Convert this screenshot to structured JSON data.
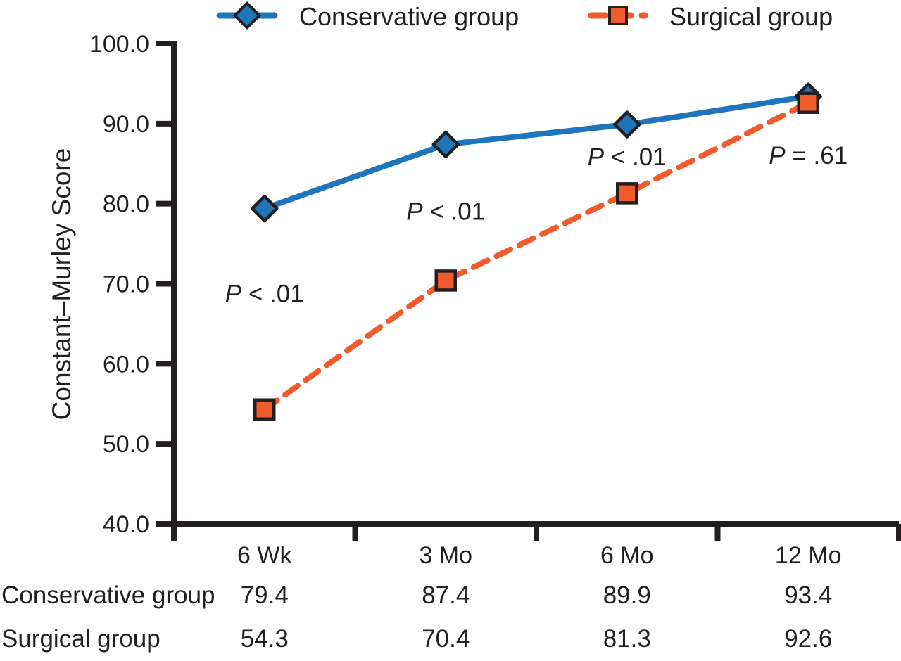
{
  "figure": {
    "background": "#ffffff"
  },
  "colors": {
    "conservative_blue": "#1E75BB",
    "surgical_orange": "#F15A2B",
    "axis_black": "#231F20",
    "text_black": "#231F20",
    "marker_outline": "#231F20"
  },
  "chart_data": {
    "type": "line",
    "title": "",
    "xlabel": "",
    "ylabel": "Constant–Murley Score",
    "categories": [
      "6 Wk",
      "3 Mo",
      "6 Mo",
      "12 Mo"
    ],
    "ylim": [
      40,
      100
    ],
    "ytick_interval": 10,
    "ytick_labels": [
      "100.0",
      "90.0",
      "80.0",
      "70.0",
      "60.0",
      "50.0",
      "40.0"
    ],
    "grid": false,
    "legend_position": "top",
    "series": [
      {
        "name": "Conservative group",
        "values": [
          79.4,
          87.4,
          89.9,
          93.4
        ],
        "color": "#1E75BB",
        "marker": "diamond",
        "line_style": "solid"
      },
      {
        "name": "Surgical group",
        "values": [
          54.3,
          70.4,
          81.3,
          92.6
        ],
        "color": "#F15A2B",
        "marker": "square",
        "line_style": "dashed"
      }
    ],
    "annotations": [
      {
        "label": "P < .01",
        "category_index": 0,
        "y_value": 67.7
      },
      {
        "label": "P < .01",
        "category_index": 1,
        "y_value": 78.0
      },
      {
        "label": "P < .01",
        "category_index": 2,
        "y_value": 84.8
      },
      {
        "label": "P = .61",
        "category_index": 3,
        "y_value": 85.0
      }
    ],
    "data_table": {
      "rows": [
        {
          "label": "Conservative group",
          "values": [
            "79.4",
            "87.4",
            "89.9",
            "93.4"
          ]
        },
        {
          "label": "Surgical group",
          "values": [
            "54.3",
            "70.4",
            "81.3",
            "92.6"
          ]
        }
      ]
    }
  }
}
